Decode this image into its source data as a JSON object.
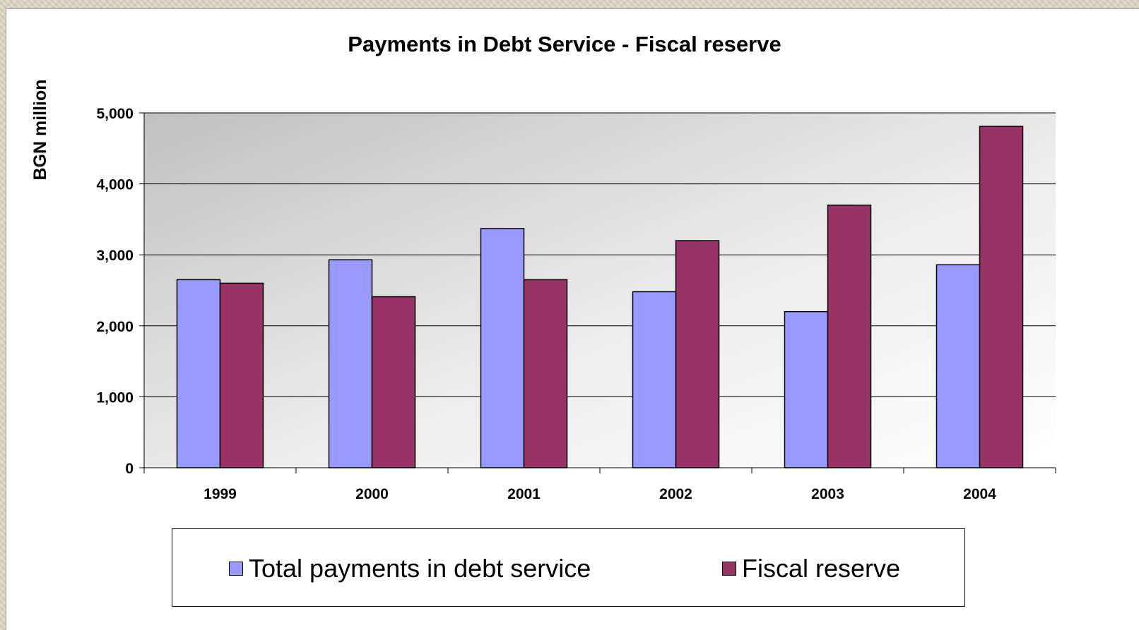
{
  "chart_data": {
    "type": "bar",
    "title": "Payments in Debt Service - Fiscal reserve",
    "ylabel": "BGN million",
    "xlabel": "",
    "categories": [
      "1999",
      "2000",
      "2001",
      "2002",
      "2003",
      "2004"
    ],
    "series": [
      {
        "name": "Total payments in debt service",
        "color": "#9999ff",
        "values": [
          2650,
          2930,
          3370,
          2480,
          2200,
          2860
        ]
      },
      {
        "name": "Fiscal reserve",
        "color": "#993366",
        "values": [
          2600,
          2410,
          2650,
          3200,
          3700,
          4810
        ]
      }
    ],
    "ylim": [
      0,
      5000
    ],
    "yticks": [
      0,
      1000,
      2000,
      3000,
      4000,
      5000
    ],
    "ytick_labels": [
      "0",
      "1,000",
      "2,000",
      "3,000",
      "4,000",
      "5,000"
    ],
    "grid": true,
    "legend_position": "bottom"
  }
}
